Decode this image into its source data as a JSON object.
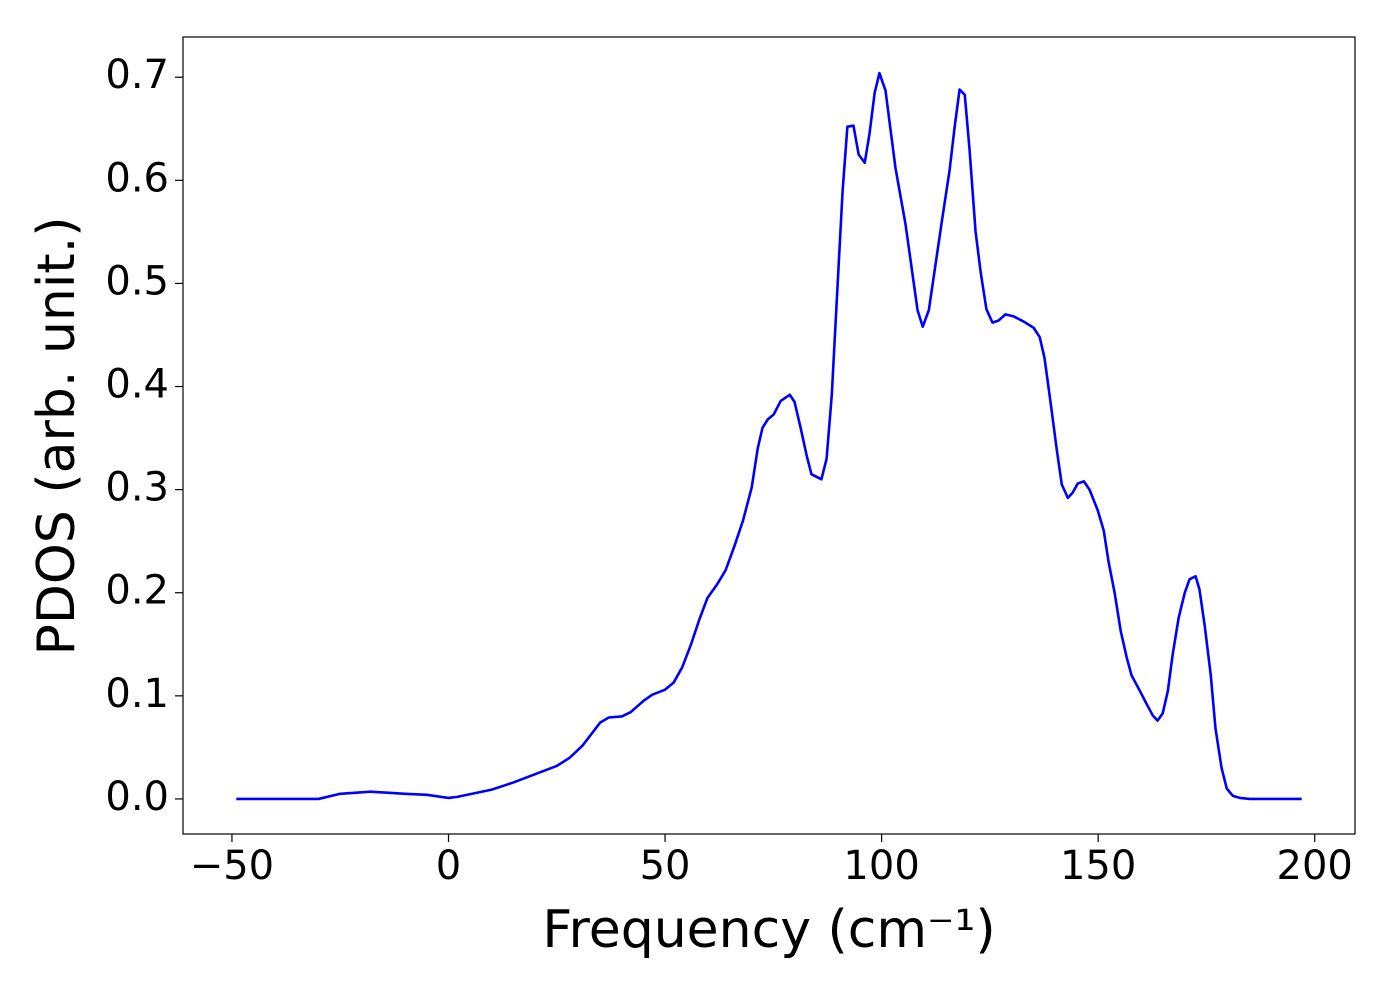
{
  "chart_data": {
    "type": "line",
    "xlabel": "Frequency (cm⁻¹)",
    "ylabel": "PDOS (arb. unit.)",
    "color": "#0000ff",
    "x": [
      -49,
      -30,
      -25,
      -18,
      -10,
      -5,
      0,
      2,
      10,
      15,
      20,
      25,
      28,
      31,
      33,
      35,
      37,
      40,
      42,
      45,
      47,
      50,
      52,
      54,
      56,
      58,
      59.8,
      62,
      64,
      66,
      68,
      70,
      71.4,
      72.5,
      73.7,
      75.1,
      76.7,
      78.8,
      79.9,
      81.3,
      82.7,
      83.8,
      86.1,
      87.3,
      88.5,
      89.6,
      91.0,
      92.1,
      93.5,
      94.7,
      96.1,
      97.2,
      98.4,
      99.5,
      100.9,
      103.2,
      105.5,
      108.3,
      109.5,
      110.9,
      113.9,
      115.7,
      116.9,
      118.0,
      119.2,
      120.3,
      121.7,
      122.9,
      124.2,
      125.6,
      127.0,
      128.6,
      130.5,
      132.8,
      135.1,
      136.5,
      137.6,
      139.0,
      140.4,
      141.6,
      143.0,
      144.1,
      145.3,
      146.7,
      148.0,
      149.9,
      151.3,
      152.4,
      153.8,
      155.2,
      156.6,
      157.7,
      159.6,
      161.2,
      162.6,
      163.7,
      164.9,
      166.1,
      167.2,
      168.6,
      170.0,
      171.1,
      172.5,
      173.4,
      174.6,
      176.0,
      177.1,
      178.5,
      179.7,
      181.1,
      182.7,
      185,
      197
    ],
    "values": [
      0,
      0,
      0.005,
      0.007,
      0.005,
      0.004,
      0.001,
      0.002,
      0.009,
      0.016,
      0.024,
      0.032,
      0.04,
      0.052,
      0.063,
      0.074,
      0.079,
      0.08,
      0.084,
      0.095,
      0.101,
      0.106,
      0.113,
      0.128,
      0.15,
      0.175,
      0.195,
      0.208,
      0.222,
      0.245,
      0.27,
      0.302,
      0.34,
      0.36,
      0.368,
      0.373,
      0.386,
      0.392,
      0.385,
      0.36,
      0.333,
      0.315,
      0.31,
      0.33,
      0.392,
      0.48,
      0.59,
      0.652,
      0.653,
      0.625,
      0.617,
      0.645,
      0.685,
      0.704,
      0.687,
      0.612,
      0.558,
      0.474,
      0.458,
      0.474,
      0.56,
      0.61,
      0.653,
      0.688,
      0.683,
      0.63,
      0.55,
      0.51,
      0.475,
      0.462,
      0.464,
      0.47,
      0.468,
      0.463,
      0.457,
      0.448,
      0.428,
      0.385,
      0.34,
      0.305,
      0.292,
      0.297,
      0.306,
      0.308,
      0.3,
      0.28,
      0.26,
      0.23,
      0.2,
      0.163,
      0.137,
      0.12,
      0.105,
      0.092,
      0.081,
      0.076,
      0.083,
      0.105,
      0.14,
      0.176,
      0.2,
      0.213,
      0.216,
      0.203,
      0.168,
      0.12,
      0.068,
      0.03,
      0.01,
      0.003,
      0.001,
      0,
      0
    ],
    "xlim": [
      -61.3,
      209.3
    ],
    "ylim": [
      -0.034,
      0.739
    ],
    "xticks": [
      {
        "value": -50,
        "label": "−50"
      },
      0,
      50,
      100,
      150,
      200
    ],
    "yticks": [
      {
        "value": 0,
        "label": "0.0"
      },
      0.1,
      0.2,
      0.3,
      0.4,
      0.5,
      0.6,
      0.7
    ]
  }
}
